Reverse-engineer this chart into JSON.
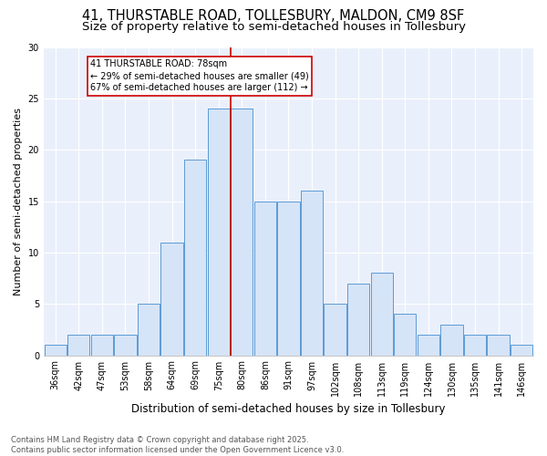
{
  "title1": "41, THURSTABLE ROAD, TOLLESBURY, MALDON, CM9 8SF",
  "title2": "Size of property relative to semi-detached houses in Tollesbury",
  "xlabel": "Distribution of semi-detached houses by size in Tollesbury",
  "ylabel": "Number of semi-detached properties",
  "bin_labels": [
    "36sqm",
    "42sqm",
    "47sqm",
    "53sqm",
    "58sqm",
    "64sqm",
    "69sqm",
    "75sqm",
    "80sqm",
    "86sqm",
    "91sqm",
    "97sqm",
    "102sqm",
    "108sqm",
    "113sqm",
    "119sqm",
    "124sqm",
    "130sqm",
    "135sqm",
    "141sqm",
    "146sqm"
  ],
  "bar_heights": [
    1,
    2,
    2,
    2,
    5,
    11,
    19,
    24,
    24,
    15,
    15,
    16,
    5,
    7,
    8,
    4,
    2,
    3,
    2,
    2,
    1
  ],
  "bin_width": 5,
  "bar_color": "#d6e4f7",
  "bar_edge_color": "#5b9bd5",
  "vline_x": 7.5,
  "vline_color": "#cc0000",
  "annotation_title": "41 THURSTABLE ROAD: 78sqm",
  "annotation_line1": "← 29% of semi-detached houses are smaller (49)",
  "annotation_line2": "67% of semi-detached houses are larger (112) →",
  "annotation_box_color": "#cc0000",
  "footnote1": "Contains HM Land Registry data © Crown copyright and database right 2025.",
  "footnote2": "Contains public sector information licensed under the Open Government Licence v3.0.",
  "ylim": [
    0,
    30
  ],
  "yticks": [
    0,
    5,
    10,
    15,
    20,
    25,
    30
  ],
  "bg_color": "#eaf0fb",
  "title_fontsize": 10.5,
  "subtitle_fontsize": 9.5,
  "ylabel_fontsize": 8,
  "xlabel_fontsize": 8.5,
  "tick_fontsize": 7,
  "annotation_fontsize": 7,
  "footnote_fontsize": 6
}
